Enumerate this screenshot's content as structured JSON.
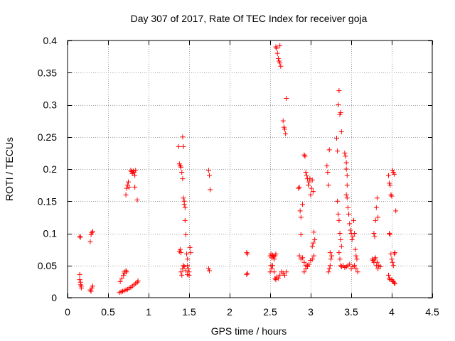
{
  "chart_data": {
    "type": "scatter",
    "title": "Day 307 of 2017, Rate Of TEC Index for receiver goja",
    "xlabel": "GPS time / hours",
    "ylabel": "ROTI / TECUs",
    "xlim": [
      0,
      4.5
    ],
    "ylim": [
      0,
      0.4
    ],
    "xticks": [
      0,
      0.5,
      1,
      1.5,
      2,
      2.5,
      3,
      3.5,
      4,
      4.5
    ],
    "xtick_labels": [
      "0",
      "0.5",
      "1",
      "1.5",
      "2",
      "2.5",
      "3",
      "3.5",
      "4",
      "4.5"
    ],
    "yticks": [
      0,
      0.05,
      0.1,
      0.15,
      0.2,
      0.25,
      0.3,
      0.35,
      0.4
    ],
    "ytick_labels": [
      "0",
      "0.05",
      "0.1",
      "0.15",
      "0.2",
      "0.25",
      "0.3",
      "0.35",
      "0.4"
    ],
    "grid": true,
    "marker": "+",
    "color": "#ff0000",
    "series": [
      {
        "name": "ROTI",
        "points": [
          [
            0.15,
            0.036
          ],
          [
            0.15,
            0.028
          ],
          [
            0.16,
            0.024
          ],
          [
            0.16,
            0.02
          ],
          [
            0.17,
            0.018
          ],
          [
            0.17,
            0.015
          ],
          [
            0.15,
            0.095
          ],
          [
            0.16,
            0.094
          ],
          [
            0.28,
            0.012
          ],
          [
            0.29,
            0.01
          ],
          [
            0.3,
            0.015
          ],
          [
            0.31,
            0.018
          ],
          [
            0.28,
            0.087
          ],
          [
            0.29,
            0.098
          ],
          [
            0.3,
            0.101
          ],
          [
            0.31,
            0.103
          ],
          [
            0.64,
            0.008
          ],
          [
            0.66,
            0.009
          ],
          [
            0.68,
            0.01
          ],
          [
            0.7,
            0.011
          ],
          [
            0.72,
            0.012
          ],
          [
            0.74,
            0.013
          ],
          [
            0.76,
            0.015
          ],
          [
            0.78,
            0.016
          ],
          [
            0.8,
            0.018
          ],
          [
            0.82,
            0.02
          ],
          [
            0.84,
            0.022
          ],
          [
            0.86,
            0.024
          ],
          [
            0.87,
            0.026
          ],
          [
            0.65,
            0.025
          ],
          [
            0.67,
            0.03
          ],
          [
            0.69,
            0.035
          ],
          [
            0.7,
            0.04
          ],
          [
            0.72,
            0.042
          ],
          [
            0.73,
            0.04
          ],
          [
            0.7,
            0.038
          ],
          [
            0.72,
            0.16
          ],
          [
            0.73,
            0.17
          ],
          [
            0.74,
            0.175
          ],
          [
            0.75,
            0.18
          ],
          [
            0.76,
            0.172
          ],
          [
            0.78,
            0.198
          ],
          [
            0.79,
            0.196
          ],
          [
            0.8,
            0.193
          ],
          [
            0.81,
            0.197
          ],
          [
            0.82,
            0.195
          ],
          [
            0.83,
            0.19
          ],
          [
            0.84,
            0.198
          ],
          [
            0.83,
            0.172
          ],
          [
            0.86,
            0.152
          ],
          [
            1.37,
            0.235
          ],
          [
            1.38,
            0.072
          ],
          [
            1.39,
            0.075
          ],
          [
            1.4,
            0.07
          ],
          [
            1.38,
            0.208
          ],
          [
            1.39,
            0.205
          ],
          [
            1.4,
            0.203
          ],
          [
            1.41,
            0.195
          ],
          [
            1.42,
            0.185
          ],
          [
            1.42,
            0.25
          ],
          [
            1.43,
            0.235
          ],
          [
            1.43,
            0.155
          ],
          [
            1.44,
            0.15
          ],
          [
            1.44,
            0.145
          ],
          [
            1.45,
            0.14
          ],
          [
            1.45,
            0.12
          ],
          [
            1.46,
            0.098
          ],
          [
            1.47,
            0.068
          ],
          [
            1.48,
            0.06
          ],
          [
            1.48,
            0.05
          ],
          [
            1.49,
            0.045
          ],
          [
            1.5,
            0.04
          ],
          [
            1.5,
            0.035
          ],
          [
            1.51,
            0.078
          ],
          [
            1.52,
            0.07
          ],
          [
            1.4,
            0.04
          ],
          [
            1.41,
            0.035
          ],
          [
            1.42,
            0.045
          ],
          [
            1.43,
            0.05
          ],
          [
            1.44,
            0.048
          ],
          [
            1.46,
            0.042
          ],
          [
            1.48,
            0.036
          ],
          [
            1.74,
            0.198
          ],
          [
            1.75,
            0.19
          ],
          [
            1.76,
            0.168
          ],
          [
            1.74,
            0.045
          ],
          [
            1.75,
            0.042
          ],
          [
            2.21,
            0.07
          ],
          [
            2.22,
            0.068
          ],
          [
            2.21,
            0.036
          ],
          [
            2.22,
            0.038
          ],
          [
            2.5,
            0.065
          ],
          [
            2.51,
            0.068
          ],
          [
            2.52,
            0.062
          ],
          [
            2.53,
            0.066
          ],
          [
            2.54,
            0.064
          ],
          [
            2.55,
            0.06
          ],
          [
            2.56,
            0.065
          ],
          [
            2.57,
            0.068
          ],
          [
            2.5,
            0.04
          ],
          [
            2.51,
            0.05
          ],
          [
            2.52,
            0.045
          ],
          [
            2.53,
            0.05
          ],
          [
            2.55,
            0.04
          ],
          [
            2.56,
            0.03
          ],
          [
            2.57,
            0.028
          ],
          [
            2.58,
            0.032
          ],
          [
            2.6,
            0.03
          ],
          [
            2.62,
            0.035
          ],
          [
            2.64,
            0.04
          ],
          [
            2.66,
            0.038
          ],
          [
            2.68,
            0.035
          ],
          [
            2.7,
            0.04
          ],
          [
            2.57,
            0.39
          ],
          [
            2.58,
            0.388
          ],
          [
            2.59,
            0.38
          ],
          [
            2.6,
            0.372
          ],
          [
            2.61,
            0.368
          ],
          [
            2.62,
            0.365
          ],
          [
            2.62,
            0.392
          ],
          [
            2.63,
            0.36
          ],
          [
            2.66,
            0.275
          ],
          [
            2.67,
            0.265
          ],
          [
            2.68,
            0.262
          ],
          [
            2.69,
            0.255
          ],
          [
            2.7,
            0.31
          ],
          [
            2.85,
            0.17
          ],
          [
            2.86,
            0.172
          ],
          [
            2.87,
            0.135
          ],
          [
            2.88,
            0.125
          ],
          [
            2.9,
            0.145
          ],
          [
            2.88,
            0.098
          ],
          [
            2.92,
            0.222
          ],
          [
            2.93,
            0.22
          ],
          [
            2.94,
            0.195
          ],
          [
            2.95,
            0.19
          ],
          [
            2.96,
            0.185
          ],
          [
            2.97,
            0.175
          ],
          [
            2.98,
            0.18
          ],
          [
            2.99,
            0.185
          ],
          [
            3.0,
            0.16
          ],
          [
            3.01,
            0.17
          ],
          [
            3.02,
            0.183
          ],
          [
            3.03,
            0.165
          ],
          [
            3.04,
            0.102
          ],
          [
            3.05,
            0.09
          ],
          [
            3.02,
            0.08
          ],
          [
            3.03,
            0.085
          ],
          [
            2.86,
            0.065
          ],
          [
            2.88,
            0.06
          ],
          [
            2.9,
            0.062
          ],
          [
            2.92,
            0.055
          ],
          [
            2.94,
            0.05
          ],
          [
            2.96,
            0.048
          ],
          [
            2.98,
            0.052
          ],
          [
            3.0,
            0.058
          ],
          [
            3.02,
            0.06
          ],
          [
            3.04,
            0.065
          ],
          [
            2.92,
            0.04
          ],
          [
            2.94,
            0.045
          ],
          [
            2.96,
            0.05
          ],
          [
            3.2,
            0.205
          ],
          [
            3.21,
            0.195
          ],
          [
            3.22,
            0.175
          ],
          [
            3.23,
            0.23
          ],
          [
            3.24,
            0.07
          ],
          [
            3.25,
            0.06
          ],
          [
            3.22,
            0.04
          ],
          [
            3.23,
            0.045
          ],
          [
            3.24,
            0.05
          ],
          [
            3.26,
            0.065
          ],
          [
            3.32,
            0.248
          ],
          [
            3.33,
            0.228
          ],
          [
            3.34,
            0.3
          ],
          [
            3.35,
            0.322
          ],
          [
            3.36,
            0.285
          ],
          [
            3.37,
            0.288
          ],
          [
            3.38,
            0.258
          ],
          [
            3.33,
            0.15
          ],
          [
            3.34,
            0.13
          ],
          [
            3.35,
            0.12
          ],
          [
            3.36,
            0.1
          ],
          [
            3.37,
            0.09
          ],
          [
            3.38,
            0.08
          ],
          [
            3.35,
            0.07
          ],
          [
            3.36,
            0.06
          ],
          [
            3.37,
            0.05
          ],
          [
            3.38,
            0.048
          ],
          [
            3.4,
            0.05
          ],
          [
            3.42,
            0.047
          ],
          [
            3.44,
            0.048
          ],
          [
            3.46,
            0.05
          ],
          [
            3.48,
            0.052
          ],
          [
            3.5,
            0.045
          ],
          [
            3.52,
            0.048
          ],
          [
            3.54,
            0.05
          ],
          [
            3.56,
            0.045
          ],
          [
            3.58,
            0.04
          ],
          [
            3.42,
            0.225
          ],
          [
            3.43,
            0.22
          ],
          [
            3.44,
            0.21
          ],
          [
            3.44,
            0.2
          ],
          [
            3.45,
            0.19
          ],
          [
            3.45,
            0.175
          ],
          [
            3.44,
            0.16
          ],
          [
            3.45,
            0.155
          ],
          [
            3.46,
            0.14
          ],
          [
            3.47,
            0.13
          ],
          [
            3.48,
            0.115
          ],
          [
            3.49,
            0.105
          ],
          [
            3.5,
            0.1
          ],
          [
            3.51,
            0.09
          ],
          [
            3.52,
            0.095
          ],
          [
            3.53,
            0.12
          ],
          [
            3.54,
            0.1
          ],
          [
            3.55,
            0.075
          ],
          [
            3.56,
            0.065
          ],
          [
            3.57,
            0.06
          ],
          [
            3.76,
            0.06
          ],
          [
            3.77,
            0.058
          ],
          [
            3.78,
            0.055
          ],
          [
            3.79,
            0.06
          ],
          [
            3.8,
            0.062
          ],
          [
            3.81,
            0.05
          ],
          [
            3.82,
            0.055
          ],
          [
            3.83,
            0.045
          ],
          [
            3.84,
            0.05
          ],
          [
            3.86,
            0.048
          ],
          [
            3.78,
            0.1
          ],
          [
            3.79,
            0.095
          ],
          [
            3.8,
            0.12
          ],
          [
            3.81,
            0.14
          ],
          [
            3.82,
            0.155
          ],
          [
            3.83,
            0.125
          ],
          [
            3.96,
            0.19
          ],
          [
            3.97,
            0.178
          ],
          [
            3.98,
            0.175
          ],
          [
            3.99,
            0.16
          ],
          [
            4.0,
            0.158
          ],
          [
            4.01,
            0.198
          ],
          [
            4.02,
            0.195
          ],
          [
            4.03,
            0.192
          ],
          [
            3.97,
            0.1
          ],
          [
            3.98,
            0.098
          ],
          [
            3.99,
            0.068
          ],
          [
            4.0,
            0.06
          ],
          [
            4.01,
            0.055
          ],
          [
            4.02,
            0.05
          ],
          [
            4.03,
            0.068
          ],
          [
            4.04,
            0.07
          ],
          [
            4.05,
            0.135
          ],
          [
            3.96,
            0.035
          ],
          [
            3.97,
            0.03
          ],
          [
            3.98,
            0.028
          ],
          [
            4.0,
            0.028
          ],
          [
            4.01,
            0.026
          ],
          [
            4.02,
            0.025
          ],
          [
            4.03,
            0.023
          ],
          [
            4.04,
            0.022
          ]
        ]
      }
    ]
  }
}
